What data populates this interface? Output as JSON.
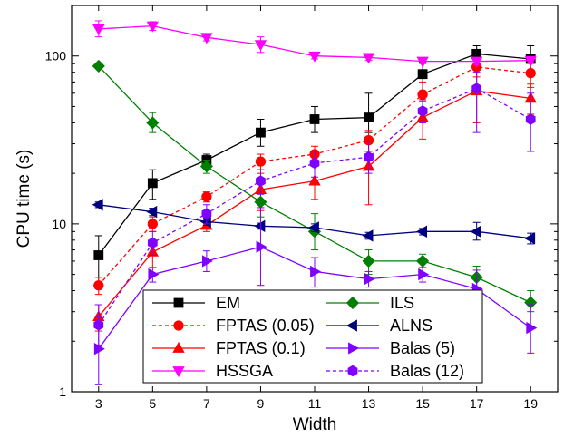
{
  "chart_data": {
    "type": "line",
    "xlabel": "Width",
    "ylabel": "CPU time (s)",
    "y_scale": "log",
    "xlim": [
      2,
      20
    ],
    "ylim": [
      1,
      200
    ],
    "x_ticks": [
      3,
      5,
      7,
      9,
      11,
      13,
      15,
      17,
      19
    ],
    "y_ticks": [
      {
        "value": 1,
        "label": "1"
      },
      {
        "value": 10,
        "label": "10"
      },
      {
        "value": 100,
        "label": "100"
      }
    ],
    "legend_position": "bottom-center",
    "legend_columns": 2,
    "grid": false,
    "series": [
      {
        "name": "EM",
        "color": "#000000",
        "marker": "square",
        "dashed": false,
        "x": [
          3,
          5,
          7,
          9,
          11,
          13,
          15,
          17,
          19
        ],
        "y": [
          6.5,
          17.5,
          24,
          35,
          42,
          43,
          78,
          103,
          96
        ],
        "err": [
          [
            4.2,
            8.5
          ],
          [
            14,
            21
          ],
          [
            22,
            26
          ],
          [
            29,
            42
          ],
          [
            35,
            50
          ],
          [
            35,
            60
          ],
          [
            62,
            92
          ],
          [
            85,
            115
          ],
          [
            80,
            115
          ]
        ]
      },
      {
        "name": "FPTAS (0.05)",
        "color": "#ff0000",
        "marker": "circle",
        "dashed": true,
        "x": [
          3,
          5,
          7,
          9,
          11,
          13,
          15,
          17,
          19
        ],
        "y": [
          4.3,
          10,
          14.5,
          23.5,
          26,
          31.5,
          59,
          86,
          79
        ],
        "err": [
          [
            3.8,
            4.8
          ],
          [
            9,
            11
          ],
          [
            13.5,
            15.5
          ],
          [
            21,
            26
          ],
          [
            23,
            29
          ],
          [
            27,
            36
          ],
          [
            48,
            70
          ],
          [
            75,
            98
          ],
          [
            65,
            92
          ]
        ]
      },
      {
        "name": "FPTAS (0.1)",
        "color": "#ff0000",
        "marker": "triangle-up",
        "dashed": false,
        "x": [
          3,
          5,
          7,
          9,
          11,
          13,
          15,
          17,
          19
        ],
        "y": [
          2.8,
          6.8,
          9.8,
          16,
          18,
          22,
          43,
          62,
          56
        ],
        "err": [
          [
            2.3,
            3.3
          ],
          [
            5.5,
            8
          ],
          [
            9,
            11
          ],
          [
            12,
            20
          ],
          [
            14,
            22
          ],
          [
            13,
            30
          ],
          [
            32,
            54
          ],
          [
            40,
            85
          ],
          [
            45,
            68
          ]
        ]
      },
      {
        "name": "HSSGA",
        "color": "#ff00ff",
        "marker": "triangle-down",
        "dashed": false,
        "x": [
          3,
          5,
          7,
          9,
          11,
          13,
          15,
          17,
          19
        ],
        "y": [
          145,
          151,
          129,
          117,
          100,
          98,
          93,
          93,
          94
        ],
        "err": [
          [
            130,
            162
          ],
          [
            142,
            160
          ],
          [
            123,
            135
          ],
          [
            105,
            130
          ],
          [
            96,
            104
          ],
          [
            94,
            102
          ],
          [
            90,
            96
          ],
          [
            89,
            97
          ],
          [
            90,
            98
          ]
        ]
      },
      {
        "name": "ILS",
        "color": "#008000",
        "marker": "diamond",
        "dashed": false,
        "x": [
          3,
          5,
          7,
          9,
          11,
          13,
          15,
          17,
          19
        ],
        "y": [
          87,
          40,
          22,
          13.5,
          9,
          6,
          6,
          4.8,
          3.4
        ],
        "err": [
          [
            85,
            89
          ],
          [
            35,
            46
          ],
          [
            20,
            24
          ],
          [
            11,
            16
          ],
          [
            7,
            11.5
          ],
          [
            5,
            7
          ],
          [
            5.5,
            6.6
          ],
          [
            4.1,
            5.6
          ],
          [
            3,
            4
          ]
        ]
      },
      {
        "name": "ALNS",
        "color": "#000080",
        "marker": "triangle-left",
        "dashed": false,
        "x": [
          3,
          5,
          7,
          9,
          11,
          13,
          15,
          17,
          19
        ],
        "y": [
          13,
          11.8,
          10.3,
          9.7,
          9.5,
          8.5,
          9,
          9,
          8.2
        ],
        "err": [
          [
            12.5,
            13.5
          ],
          [
            11.2,
            12.4
          ],
          [
            9.8,
            10.8
          ],
          [
            9.3,
            10.1
          ],
          [
            9,
            10
          ],
          [
            8.1,
            8.9
          ],
          [
            8.6,
            9.4
          ],
          [
            8,
            10.2
          ],
          [
            7.6,
            8.8
          ]
        ]
      },
      {
        "name": "Balas (5)",
        "color": "#8000ff",
        "marker": "triangle-right",
        "dashed": false,
        "x": [
          3,
          5,
          7,
          9,
          11,
          13,
          15,
          17,
          19
        ],
        "y": [
          1.8,
          5,
          6,
          7.3,
          5.2,
          4.7,
          5,
          4.1,
          2.4
        ],
        "err": [
          [
            1.1,
            2.8
          ],
          [
            4.5,
            5.5
          ],
          [
            5.2,
            6.9
          ],
          [
            4.3,
            12.5
          ],
          [
            4.2,
            6.3
          ],
          [
            4.2,
            5.2
          ],
          [
            4.5,
            5.5
          ],
          [
            3.1,
            5.3
          ],
          [
            1.7,
            3.3
          ]
        ]
      },
      {
        "name": "Balas (12)",
        "color": "#8000ff",
        "marker": "hexagon",
        "dashed": true,
        "x": [
          3,
          5,
          7,
          9,
          11,
          13,
          15,
          17,
          19
        ],
        "y": [
          2.5,
          7.7,
          11.5,
          18,
          23,
          25,
          47,
          64,
          42
        ],
        "err": [
          [
            1.9,
            3.3
          ],
          [
            6.5,
            9
          ],
          [
            10,
            13
          ],
          [
            15,
            21
          ],
          [
            19,
            27
          ],
          [
            20,
            31
          ],
          [
            40,
            55
          ],
          [
            35,
            80
          ],
          [
            27,
            60
          ]
        ]
      }
    ]
  }
}
